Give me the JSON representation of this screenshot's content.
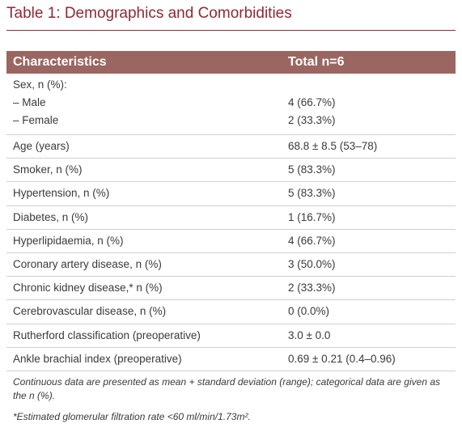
{
  "header": {
    "title": "Table 1: Demographics and Comorbidities"
  },
  "table": {
    "columns": [
      "Characteristics",
      "Total n=6"
    ],
    "groups": [
      {
        "heading": "Sex, n (%):",
        "rows": [
          [
            "– Male",
            "4 (66.7%)"
          ],
          [
            "– Female",
            "2 (33.3%)"
          ]
        ]
      }
    ],
    "rows": [
      [
        "Age (years)",
        "68.8 ± 8.5 (53–78)"
      ],
      [
        "Smoker, n (%)",
        "5 (83.3%)"
      ],
      [
        "Hypertension, n (%)",
        "5 (83.3%)"
      ],
      [
        "Diabetes, n (%)",
        "1 (16.7%)"
      ],
      [
        "Hyperlipidaemia, n (%)",
        "4 (66.7%)"
      ],
      [
        "Coronary artery disease, n (%)",
        "3 (50.0%)"
      ],
      [
        "Chronic kidney disease,* n (%)",
        "2 (33.3%)"
      ],
      [
        "Cerebrovascular disease, n (%)",
        "0 (0.0%)"
      ],
      [
        "Rutherford classification (preoperative)",
        "3.0 ± 0.0"
      ],
      [
        "Ankle brachial index (preoperative)",
        "0.69 ± 0.21 (0.4–0.96)"
      ]
    ]
  },
  "footnotes": [
    "Continuous data are presented as mean + standard deviation (range); categorical data are given as the n (%).",
    "*Estimated glomerular filtration rate <60 ml/min/1.73m²."
  ]
}
